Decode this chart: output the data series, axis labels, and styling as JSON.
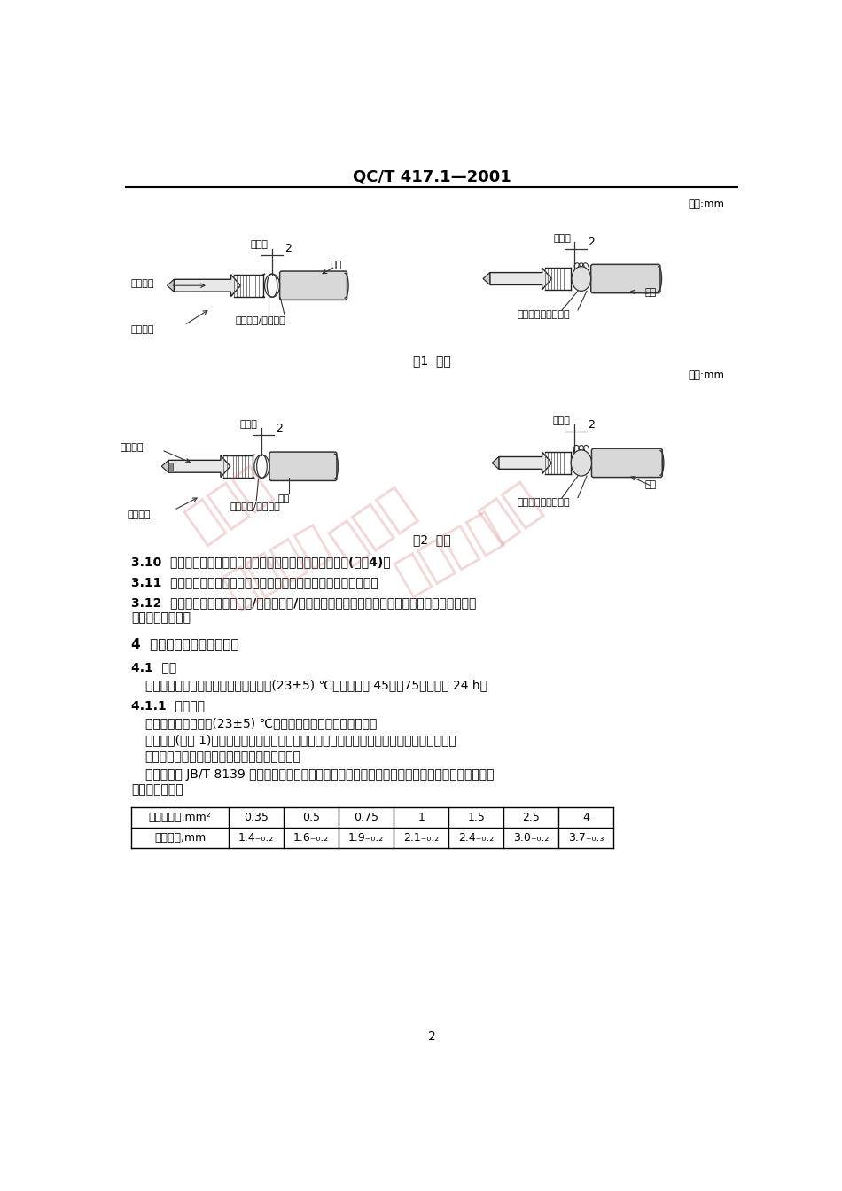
{
  "title": "QC/T 417.1—2001",
  "unit_mm_1": "单位:mm",
  "unit_mm_2": "单位:mm",
  "fig1_caption": "图1  插头",
  "fig2_caption": "图2  插座",
  "section_310": "3.10  多线连接：两个配合的插接器和多对插头和插座的连接(见图4)。",
  "section_311": "3.11  插接器定位：插接器上的装置或某一形状以防止非正确的连接。",
  "section_312_line1": "3.12  插接器编码：可目视的和/或机械的和/或感光的装置以防止出现同一族的插接器连接了相同编",
  "section_312_line2": "号的插头和插座。",
  "section_4_title": "4  一般性能要求和试验方法",
  "section_41_title": "4.1  总则",
  "section_41_body": "在所有试验开始前，都应将样品在室温(23±5) ℃，相对湿度 45％～75％下保持 24 h。",
  "section_411_title": "4.1.1  试验条件",
  "section_411_body1": "所有试验都应在室温(23±5) ℃的环境下进行，除非另有规定。",
  "section_411_body2": "每次试验(见表 1)都应使用没有使用过的样品且样品的尺寸必须符合本标准相关部分的要求。",
  "section_411_body3": "带锁锁的插座应和带孔或凹座的插头一起试验。",
  "section_411_body4": "电线应符合 JB/T 8139 的要求，若使用薄壁电线时，其尺寸应符合下列要求，所使用的电线应记录",
  "section_411_body5": "在试验报告中。",
  "table_header": [
    "电线截面积,mm²",
    "0.35",
    "0.5",
    "0.75",
    "1",
    "1.5",
    "2.5",
    "4"
  ],
  "table_row_display": [
    "电线外径,mm",
    "1.4₋₀.₂",
    "1.6₋₀.₂",
    "1.9₋₀.₂",
    "2.1₋₀.₂",
    "2.4₋₀.₂",
    "3.0₋₀.₂",
    "3.7₋₀.₃"
  ],
  "page_number": "2",
  "bg_color": "#ffffff",
  "text_color": "#000000"
}
